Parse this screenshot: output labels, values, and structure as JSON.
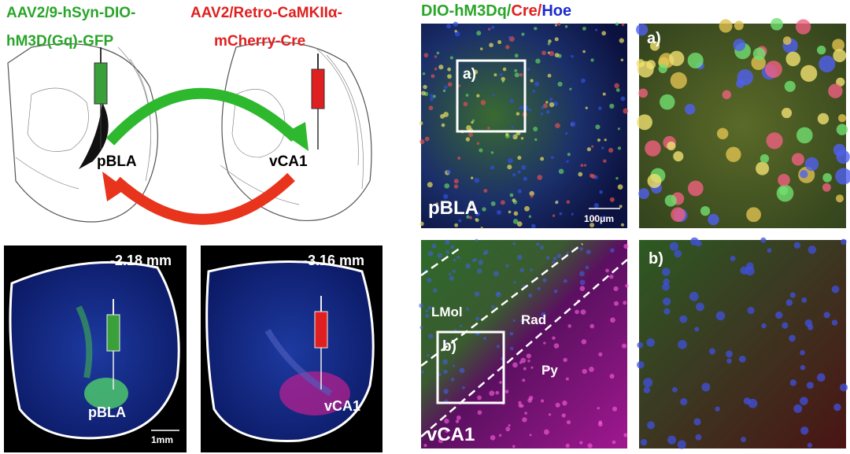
{
  "schematic": {
    "virus_left": {
      "lines": [
        "AAV2/9-hSyn-DIO-",
        "hM3D(Gq)-GFP"
      ]
    },
    "virus_right": {
      "lines": [
        "AAV2/Retro-CaMKIIα-",
        "mCherry-Cre"
      ]
    },
    "region_left": "pBLA",
    "region_right": "vCA1"
  },
  "sections": [
    {
      "depth": "-2.18 mm",
      "region": "pBLA",
      "scale_bar": "1mm"
    },
    {
      "depth": "-3.16 mm",
      "region": "vCA1"
    }
  ],
  "microscopy": {
    "title_parts": [
      "DIO-hM3Dq/",
      "Cre/",
      "Hoe"
    ],
    "panels": [
      {
        "label": "pBLA",
        "inset": "a)",
        "scale_bar": "100μm"
      },
      {
        "label": "a)"
      },
      {
        "label": "vCA1",
        "inset": "b)",
        "layers": [
          "LMol",
          "Rad",
          "Py"
        ]
      },
      {
        "label": "b)"
      }
    ]
  }
}
